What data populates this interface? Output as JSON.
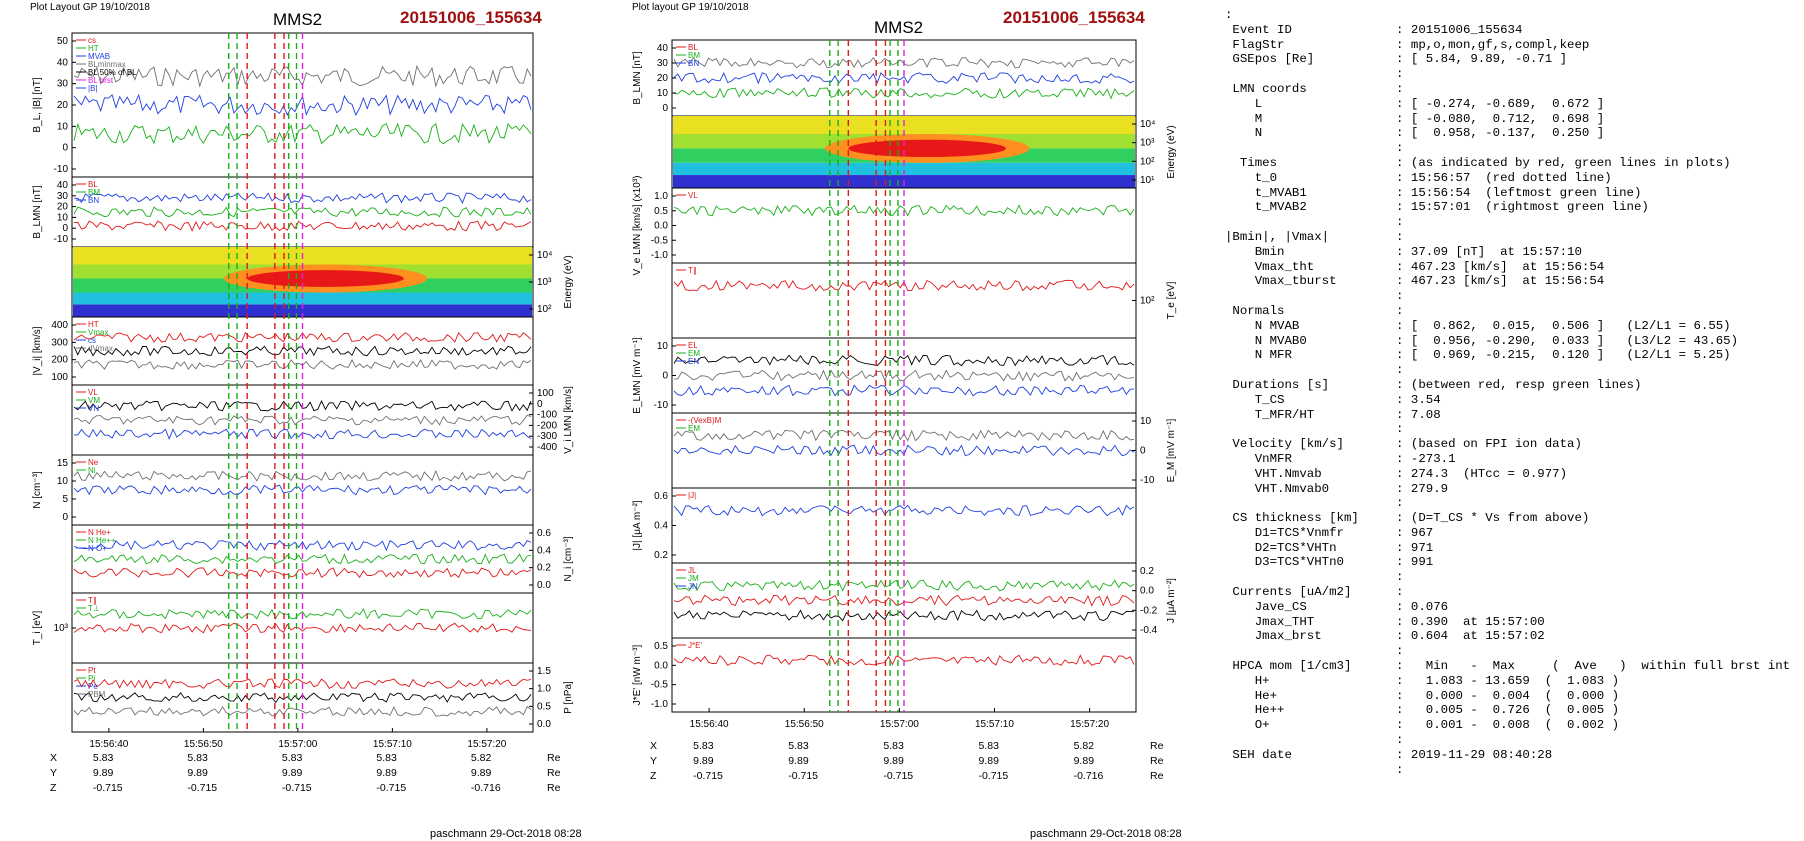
{
  "panels": [
    {
      "header": "Plot Layout GP 19/10/2018",
      "title": "MMS2",
      "event": "20151006_155634",
      "time_ticks": [
        "15:56:40",
        "15:56:50",
        "15:57:00",
        "15:57:10",
        "15:57:20"
      ],
      "position_rows": [
        {
          "label": "X",
          "values": [
            "5.83",
            "5.83",
            "5.83",
            "5.83",
            "5.82"
          ],
          "unit": "Re"
        },
        {
          "label": "Y",
          "values": [
            "9.89",
            "9.89",
            "9.89",
            "9.89",
            "9.89"
          ],
          "unit": "Re"
        },
        {
          "label": "Z",
          "values": [
            "-0.715",
            "-0.715",
            "-0.715",
            "-0.715",
            "-0.716"
          ],
          "unit": "Re"
        }
      ],
      "footer": "paschmann 29-Oct-2018 08:28",
      "rows": [
        {
          "left_label": "B_L, |B| [nT]",
          "right_label": "",
          "left_ticks": [
            "50",
            "40",
            "30",
            "20",
            "10",
            "0",
            "-10"
          ],
          "right_ticks": [],
          "legend": [
            "cs",
            "HT",
            "MVAB",
            "BLminmax",
            "BL 50% of BL",
            "BL brst",
            "|B|"
          ],
          "type": "line"
        },
        {
          "left_label": "B_LMN [nT]",
          "right_label": "",
          "left_ticks": [
            "40",
            "30",
            "20",
            "10",
            "0",
            "-10"
          ],
          "right_ticks": [],
          "legend": [
            "BL",
            "BM",
            "BN"
          ],
          "type": "line"
        },
        {
          "left_label": "",
          "right_label": "Energy (eV)",
          "left_ticks": [],
          "right_ticks": [
            "10⁴",
            "10³",
            "10²"
          ],
          "legend": [],
          "type": "spectrogram"
        },
        {
          "left_label": "|V_i| [km/s]",
          "right_label": "",
          "left_ticks": [
            "400",
            "300",
            "200",
            "100"
          ],
          "right_ticks": [],
          "legend": [
            "HT",
            "Vmax",
            "cs",
            "dVmax"
          ],
          "type": "line"
        },
        {
          "left_label": "",
          "right_label": "V_i LMN [km/s]",
          "left_ticks": [],
          "right_ticks": [
            "100",
            "0",
            "-100",
            "-200",
            "-300",
            "-400"
          ],
          "legend": [
            "VL",
            "VM",
            "VN"
          ],
          "type": "line"
        },
        {
          "left_label": "N [cm⁻³]",
          "right_label": "",
          "left_ticks": [
            "15",
            "10",
            "5",
            "0"
          ],
          "right_ticks": [],
          "legend": [
            "Ne",
            "Ni"
          ],
          "type": "line"
        },
        {
          "left_label": "",
          "right_label": "N_i [cm⁻³]",
          "left_ticks": [],
          "right_ticks": [
            "0.6",
            "0.4",
            "0.2",
            "0.0"
          ],
          "legend": [
            "N He+",
            "N He++",
            "N O+"
          ],
          "type": "line"
        },
        {
          "left_label": "T_i [eV]",
          "right_label": "",
          "left_ticks": [
            "10³"
          ],
          "right_ticks": [],
          "legend": [
            "T∥",
            "T⊥"
          ],
          "type": "line"
        },
        {
          "left_label": "",
          "right_label": "P [nPa]",
          "left_ticks": [],
          "right_ticks": [
            "1.5",
            "1.0",
            "0.5",
            "0.0"
          ],
          "legend": [
            "Pt",
            "Pi",
            "Pe",
            "PBM"
          ],
          "type": "line"
        }
      ]
    },
    {
      "header": "Plot layout GP 19/10/2018",
      "title": "MMS2",
      "event": "20151006_155634",
      "time_ticks": [
        "15:56:40",
        "15:56:50",
        "15:57:00",
        "15:57:10",
        "15:57:20"
      ],
      "position_rows": [
        {
          "label": "X",
          "values": [
            "5.83",
            "5.83",
            "5.83",
            "5.83",
            "5.82"
          ],
          "unit": "Re"
        },
        {
          "label": "Y",
          "values": [
            "9.89",
            "9.89",
            "9.89",
            "9.89",
            "9.89"
          ],
          "unit": "Re"
        },
        {
          "label": "Z",
          "values": [
            "-0.715",
            "-0.715",
            "-0.715",
            "-0.715",
            "-0.716"
          ],
          "unit": "Re"
        }
      ],
      "footer": "paschmann 29-Oct-2018 08:28",
      "rows": [
        {
          "left_label": "B_LMN [nT]",
          "right_label": "",
          "left_ticks": [
            "40",
            "30",
            "20",
            "10",
            "0"
          ],
          "right_ticks": [],
          "legend": [
            "BL",
            "BM",
            "BN"
          ],
          "type": "line"
        },
        {
          "left_label": "",
          "right_label": "Energy (eV)",
          "left_ticks": [],
          "right_ticks": [
            "10⁴",
            "10³",
            "10²",
            "10¹"
          ],
          "legend": [],
          "type": "spectrogram"
        },
        {
          "left_label": "V_e LMN [km/s] (x10³)",
          "right_label": "",
          "left_ticks": [
            "1.0",
            "0.5",
            "0.0",
            "-0.5",
            "-1.0"
          ],
          "right_ticks": [],
          "legend": [
            "VL"
          ],
          "type": "line"
        },
        {
          "left_label": "",
          "right_label": "T_e [eV]",
          "left_ticks": [],
          "right_ticks": [
            "10²"
          ],
          "legend": [
            "T∥"
          ],
          "type": "line"
        },
        {
          "left_label": "E_LMN [mV m⁻¹]",
          "right_label": "",
          "left_ticks": [
            "10",
            "0",
            "-10"
          ],
          "right_ticks": [],
          "legend": [
            "EL",
            "EM",
            "EN"
          ],
          "type": "line"
        },
        {
          "left_label": "",
          "right_label": "E_M [mV m⁻¹]",
          "left_ticks": [],
          "right_ticks": [
            "10",
            "0",
            "-10"
          ],
          "legend": [
            "-(VexB)M",
            "EM"
          ],
          "type": "line"
        },
        {
          "left_label": "|J| [μA m⁻²]",
          "right_label": "",
          "left_ticks": [
            "0.6",
            "0.4",
            "0.2"
          ],
          "right_ticks": [],
          "legend": [
            "|J|"
          ],
          "type": "line"
        },
        {
          "left_label": "",
          "right_label": "J [μA m⁻²]",
          "left_ticks": [],
          "right_ticks": [
            "0.2",
            "0.0",
            "-0.2",
            "-0.4"
          ],
          "legend": [
            "JL",
            "JM",
            "JN"
          ],
          "type": "line"
        },
        {
          "left_label": "J*E' [nW m⁻³]",
          "right_label": "",
          "left_ticks": [
            "0.5",
            "0.0",
            "-0.5",
            "-1.0"
          ],
          "right_ticks": [],
          "legend": [
            "J*E'"
          ],
          "type": "line"
        }
      ]
    }
  ],
  "summary_lines": [
    ":",
    " Event ID              : 20151006_155634",
    " FlagStr               : mp,o,mon,gf,s,compl,keep",
    " GSEpos [Re]           : [ 5.84, 9.89, -0.71 ]",
    "                       :",
    " LMN coords            :",
    "    L                  : [ -0.274, -0.689,  0.672 ]",
    "    M                  : [ -0.080,  0.712,  0.698 ]",
    "    N                  : [  0.958, -0.137,  0.250 ]",
    "                       :",
    "  Times                : (as indicated by red, green lines in plots)",
    "    t_0                : 15:56:57  (red dotted line)",
    "    t_MVAB1            : 15:56:54  (leftmost green line)",
    "    t_MVAB2            : 15:57:01  (rightmost green line)",
    "                       :",
    "|Bmin|, |Vmax|         :",
    "    Bmin               : 37.09 [nT]  at 15:57:10",
    "    Vmax_tht           : 467.23 [km/s]  at 15:56:54",
    "    Vmax_tburst        : 467.23 [km/s]  at 15:56:54",
    "                       :",
    " Normals               :",
    "    N MVAB             : [  0.862,  0.015,  0.506 ]   (L2/L1 = 6.55)",
    "    N MVAB0            : [  0.956, -0.290,  0.033 ]   (L3/L2 = 43.65)",
    "    N MFR              : [  0.969, -0.215,  0.120 ]   (L2/L1 = 5.25)",
    "                       :",
    " Durations [s]         : (between red, resp green lines)",
    "    T_CS               : 3.54",
    "    T_MFR/HT           : 7.08",
    "                       :",
    " Velocity [km/s]       : (based on FPI ion data)",
    "    VnMFR              : -273.1",
    "    VHT.Nmvab          : 274.3  (HTcc = 0.977)",
    "    VHT.Nmvab0         : 279.9",
    "                       :",
    " CS thickness [km]     : (D=T_CS * Vs from above)",
    "    D1=TCS*Vnmfr       : 967",
    "    D2=TCS*VHTn        : 971",
    "    D3=TCS*VHTn0       : 991",
    "                       :",
    " Currents [uA/m2]      :",
    "    Jave_CS            : 0.076",
    "    Jmax_THT           : 0.390  at 15:57:00",
    "    Jmax_brst          : 0.604  at 15:57:02",
    "                       :",
    " HPCA mom [1/cm3]      :   Min   -  Max     (  Ave   )  within full brst int",
    "    H+                 :   1.083 - 13.659  (  1.083 )",
    "    He+                :   0.000 -  0.004  (  0.000 )",
    "    He++               :   0.005 -  0.726  (  0.005 )",
    "    O+                 :   0.001 -  0.008  (  0.002 )",
    "                       :",
    " SEH date              : 2019-11-29 08:40:28",
    "                       :"
  ],
  "colors": {
    "event": "#a01010",
    "green": "#18b018",
    "red": "#e01818",
    "blue": "#1f3fe0",
    "magenta": "#e020e0",
    "gray": "#707070"
  }
}
